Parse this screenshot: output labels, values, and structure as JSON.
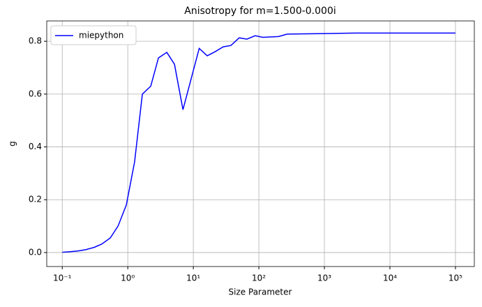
{
  "chart_data": {
    "type": "line",
    "title": "Anisotropy for m=1.500-0.000i",
    "x_label": "Size Parameter",
    "y_label": "g",
    "x_scale": "log",
    "grid": true,
    "legend_position": "upper left",
    "xlim": [
      0.058,
      194000
    ],
    "ylim": [
      -0.053,
      0.877
    ],
    "xticks": [
      {
        "value": 0.1,
        "label": "10⁻¹"
      },
      {
        "value": 1,
        "label": "10⁰"
      },
      {
        "value": 10,
        "label": "10¹"
      },
      {
        "value": 100,
        "label": "10²"
      },
      {
        "value": 1000,
        "label": "10³"
      },
      {
        "value": 10000,
        "label": "10⁴"
      },
      {
        "value": 100000,
        "label": "10⁵"
      }
    ],
    "yticks": [
      {
        "value": 0,
        "label": "0.0"
      },
      0.2,
      0.4,
      0.6,
      0.8
    ],
    "series": [
      {
        "name": "miepython",
        "color": "#0000ff",
        "x": [
          0.1,
          0.131,
          0.176,
          0.23,
          0.31,
          0.4,
          0.54,
          0.71,
          0.95,
          1.27,
          1.67,
          2.24,
          2.94,
          3.94,
          5.16,
          6.95,
          12.3,
          16.3,
          21.3,
          28.6,
          37.4,
          50.2,
          65.6,
          88,
          115,
          200,
          270,
          500,
          1000,
          3000,
          10000,
          30000,
          100000
        ],
        "values": [
          0.001,
          0.003,
          0.006,
          0.011,
          0.02,
          0.032,
          0.055,
          0.1,
          0.18,
          0.343,
          0.6,
          0.63,
          0.737,
          0.758,
          0.713,
          0.541,
          0.773,
          0.745,
          0.76,
          0.779,
          0.784,
          0.813,
          0.808,
          0.821,
          0.815,
          0.818,
          0.827,
          0.828,
          0.829,
          0.831,
          0.831,
          0.831,
          0.831
        ]
      }
    ]
  }
}
